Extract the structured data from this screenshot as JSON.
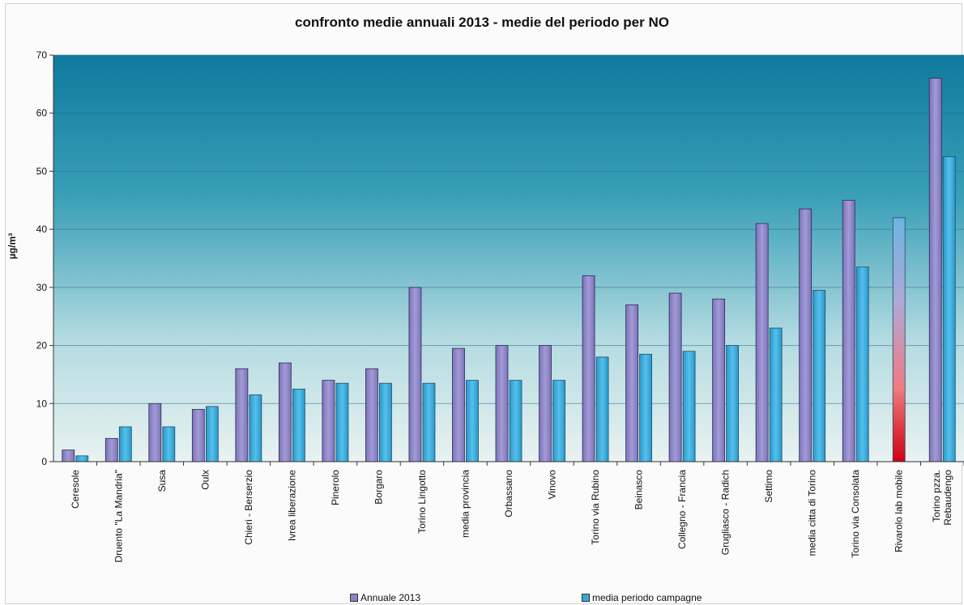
{
  "chart_data": {
    "type": "bar",
    "title": "confronto medie annuali 2013 - medie del periodo per NO",
    "ylabel": "µg/m³",
    "ylim": [
      0,
      70
    ],
    "yticks": [
      0,
      10,
      20,
      30,
      40,
      50,
      60,
      70
    ],
    "categories": [
      "Ceresole",
      "Druento \"La Mandria\"",
      "Susa",
      "Oulx",
      "Chieri - Berserzio",
      "Ivrea liberazione",
      "Pinerolo",
      "Borgaro",
      "Torino Lingotto",
      "media provincia",
      "Orbassano",
      "Vinovo",
      "Torino via Rubino",
      "Beinasco",
      "Collegno - Francia",
      "Grugliasco - Radich",
      "Settimo",
      "media citta di Torino",
      "Torino via Consolata",
      "Rivarolo lab mobile",
      "Torino pzza. Rebaudengo"
    ],
    "series": [
      {
        "name": "Annuale 2013",
        "color": "#8b84c4",
        "values": [
          2,
          4,
          10,
          9,
          16,
          17,
          14,
          16,
          30,
          19.5,
          20,
          20,
          32,
          27,
          29,
          28,
          41,
          43.5,
          45,
          null,
          66
        ]
      },
      {
        "name": "media periodo campagne",
        "color": "#35a9d8",
        "highlight_color": "#d81020",
        "values": [
          1,
          6,
          6,
          9.5,
          11.5,
          12.5,
          13.5,
          13.5,
          13.5,
          14,
          14,
          14,
          18,
          18.5,
          19,
          20,
          23,
          29.5,
          33.5,
          42,
          52.5
        ]
      }
    ],
    "highlight_index": 19,
    "grid": true,
    "legend": "bottom"
  }
}
